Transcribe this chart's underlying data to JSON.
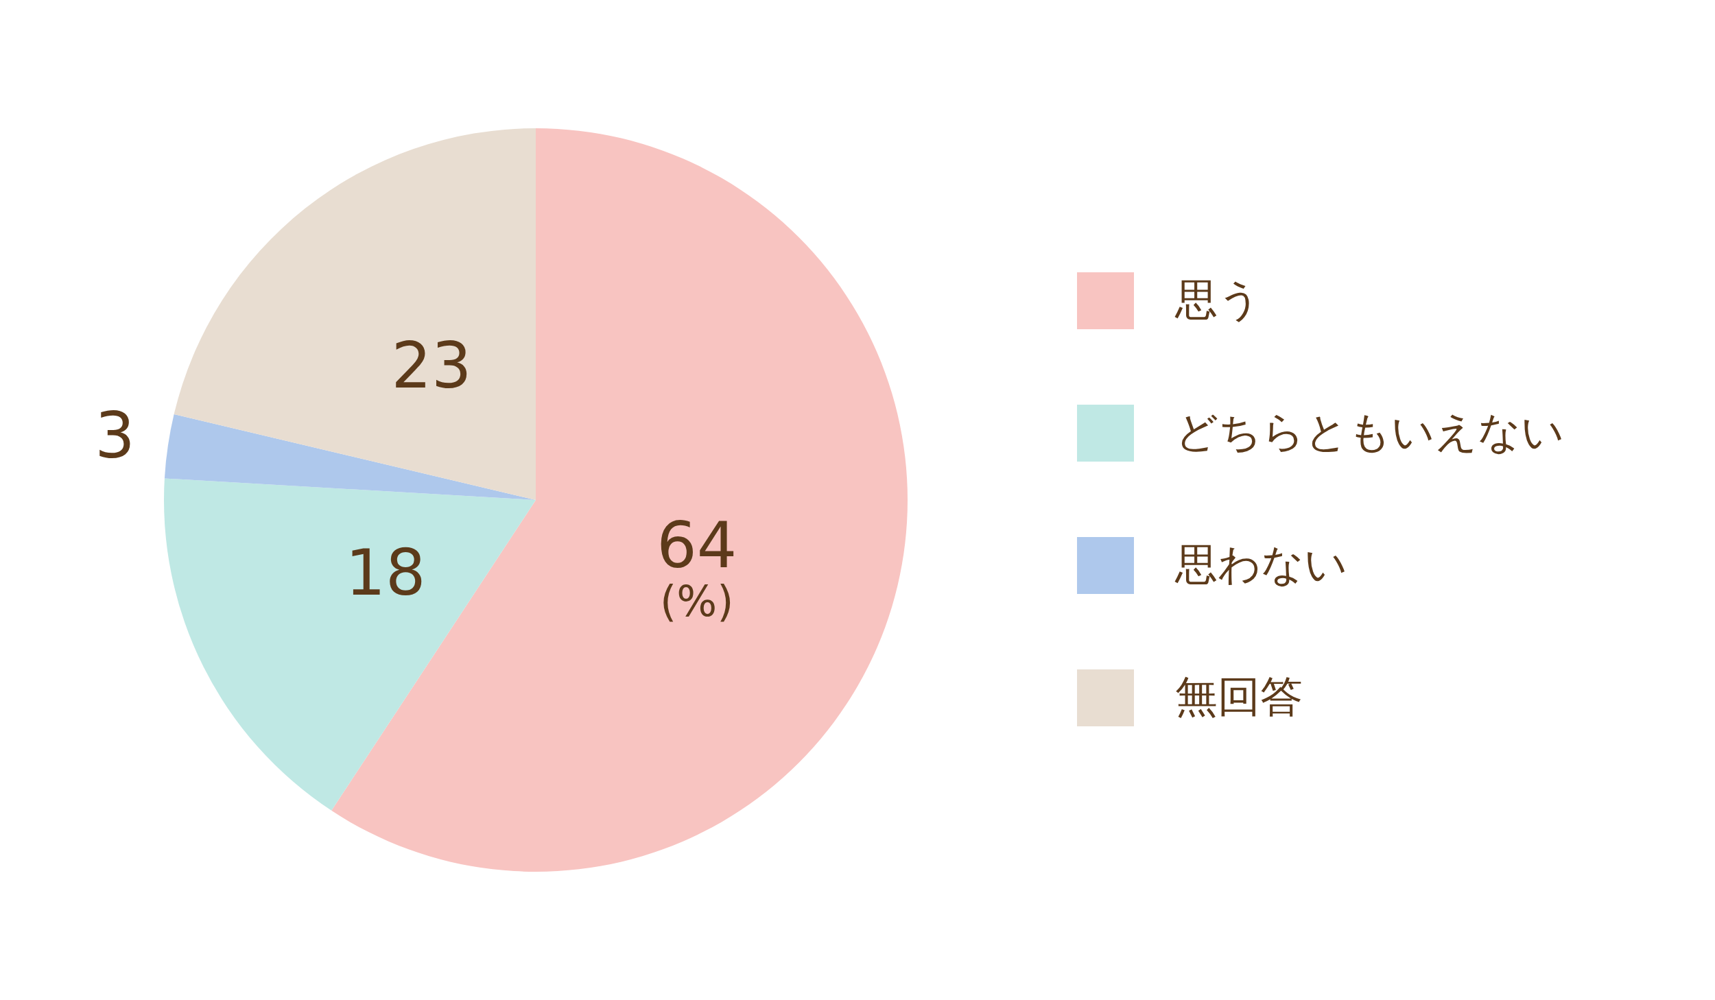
{
  "chart_data": {
    "type": "pie",
    "categories": [
      "思う",
      "どちらともいえない",
      "思わない",
      "無回答"
    ],
    "values": [
      64,
      18,
      3,
      23
    ],
    "colors": [
      "#f8c4c1",
      "#bfe8e4",
      "#aec8ec",
      "#e8ddd1"
    ],
    "data_labels": true,
    "legend": "right",
    "annotations": [
      "(%)"
    ]
  }
}
